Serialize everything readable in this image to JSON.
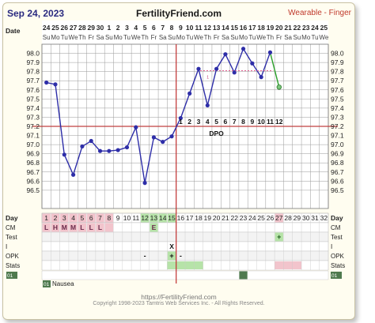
{
  "header": {
    "date": "Sep 24, 2023",
    "site": "FertilityFriend.com",
    "sensor": "Wearable - Finger"
  },
  "top_labels": {
    "date_label": "Date",
    "day_label": "Day",
    "dpo_label": "DPO"
  },
  "row_labels": [
    "CM",
    "Test",
    "I",
    "OPK",
    "Stats"
  ],
  "footer": {
    "url": "https://FertilityFriend.com",
    "copyright": "Copyright 1998-2023 Tamtris Web Services Inc. - All Rights Reserved."
  },
  "colors": {
    "line": "#2e2ea8",
    "coverline": "#c04040",
    "ovulation_line": "#c03030",
    "predicted_line": "#2aa02a",
    "fertile_green": "#b6e3a8",
    "period_pink": "#f2c4cc",
    "dark_green": "#4f7a4f",
    "grid": "#9a9a9a",
    "band": "#f7f4e0",
    "background": "#fffdf0"
  },
  "chart_data": {
    "type": "line",
    "title": "Sep 24, 2023",
    "ylabel": "",
    "xlabel": "Day",
    "ylim": [
      96.3,
      98.1
    ],
    "grid": true,
    "days": [
      1,
      2,
      3,
      4,
      5,
      6,
      7,
      8,
      9,
      10,
      11,
      12,
      13,
      14,
      15,
      16,
      17,
      18,
      19,
      20,
      21,
      22,
      23,
      24,
      25,
      26,
      27,
      28,
      29,
      30,
      31,
      32
    ],
    "dates": [
      "24",
      "25",
      "26",
      "27",
      "28",
      "29",
      "30",
      "1",
      "2",
      "3",
      "4",
      "5",
      "6",
      "7",
      "8",
      "9",
      "10",
      "11",
      "12",
      "13",
      "14",
      "15",
      "16",
      "17",
      "18",
      "19",
      "20",
      "21",
      "22",
      "23",
      "24",
      "25"
    ],
    "weekdays": [
      "Su",
      "Mo",
      "Tu",
      "We",
      "Th",
      "Fr",
      "Sa",
      "Su",
      "Mo",
      "Tu",
      "We",
      "Th",
      "Fr",
      "Sa",
      "Su",
      "Mo",
      "Tu",
      "We",
      "Th",
      "Fr",
      "Sa",
      "Su",
      "Mo",
      "Tu",
      "We",
      "Th",
      "Fr",
      "Sa",
      "Su",
      "Mo",
      "Tu",
      "We"
    ],
    "y_ticks": [
      "96.5",
      "96.6",
      "96.7",
      "96.8",
      "96.9",
      "97.0",
      "97.1",
      "97.2",
      "97.3",
      "97.4",
      "97.5",
      "97.6",
      "97.7",
      "97.8",
      "97.9",
      "98.0"
    ],
    "series": [
      {
        "values": [
          97.68,
          97.66,
          96.89,
          96.67,
          96.98,
          97.04,
          96.93,
          96.93,
          96.94,
          96.97,
          97.19,
          96.58,
          97.08,
          97.03,
          97.09,
          97.29,
          97.56,
          97.83,
          97.43,
          97.83,
          97.99,
          97.79,
          98.05,
          97.89,
          97.74,
          98.01,
          null,
          null,
          null,
          null,
          null,
          null
        ]
      }
    ],
    "predicted": {
      "from_day": 26,
      "to_day": 27,
      "values": [
        98.01,
        97.63
      ]
    },
    "coverline": 97.2,
    "ovulation_day": 15,
    "dpo_labels": [
      "1",
      "2",
      "3",
      "4",
      "5",
      "6",
      "7",
      "8",
      "9",
      "10",
      "11",
      "12"
    ],
    "dpo_start_day": 16,
    "hidden_label": "1"
  },
  "cycle_rows": {
    "cm": [
      {
        "day": 1,
        "text": "L"
      },
      {
        "day": 2,
        "text": "H"
      },
      {
        "day": 3,
        "text": "M"
      },
      {
        "day": 4,
        "text": "M"
      },
      {
        "day": 5,
        "text": "L"
      },
      {
        "day": 6,
        "text": "L"
      },
      {
        "day": 7,
        "text": "L"
      },
      {
        "day": 13,
        "text": "E"
      }
    ],
    "test": [
      {
        "day": 27,
        "text": "+"
      }
    ],
    "intercourse": [
      {
        "day": 15,
        "text": "X"
      }
    ],
    "opk": [
      {
        "day": 12,
        "text": "-"
      },
      {
        "day": 15,
        "text": "+"
      },
      {
        "day": 16,
        "text": "-"
      }
    ],
    "stats": [],
    "notes_marker": "01",
    "notes_text": "Nausea"
  }
}
